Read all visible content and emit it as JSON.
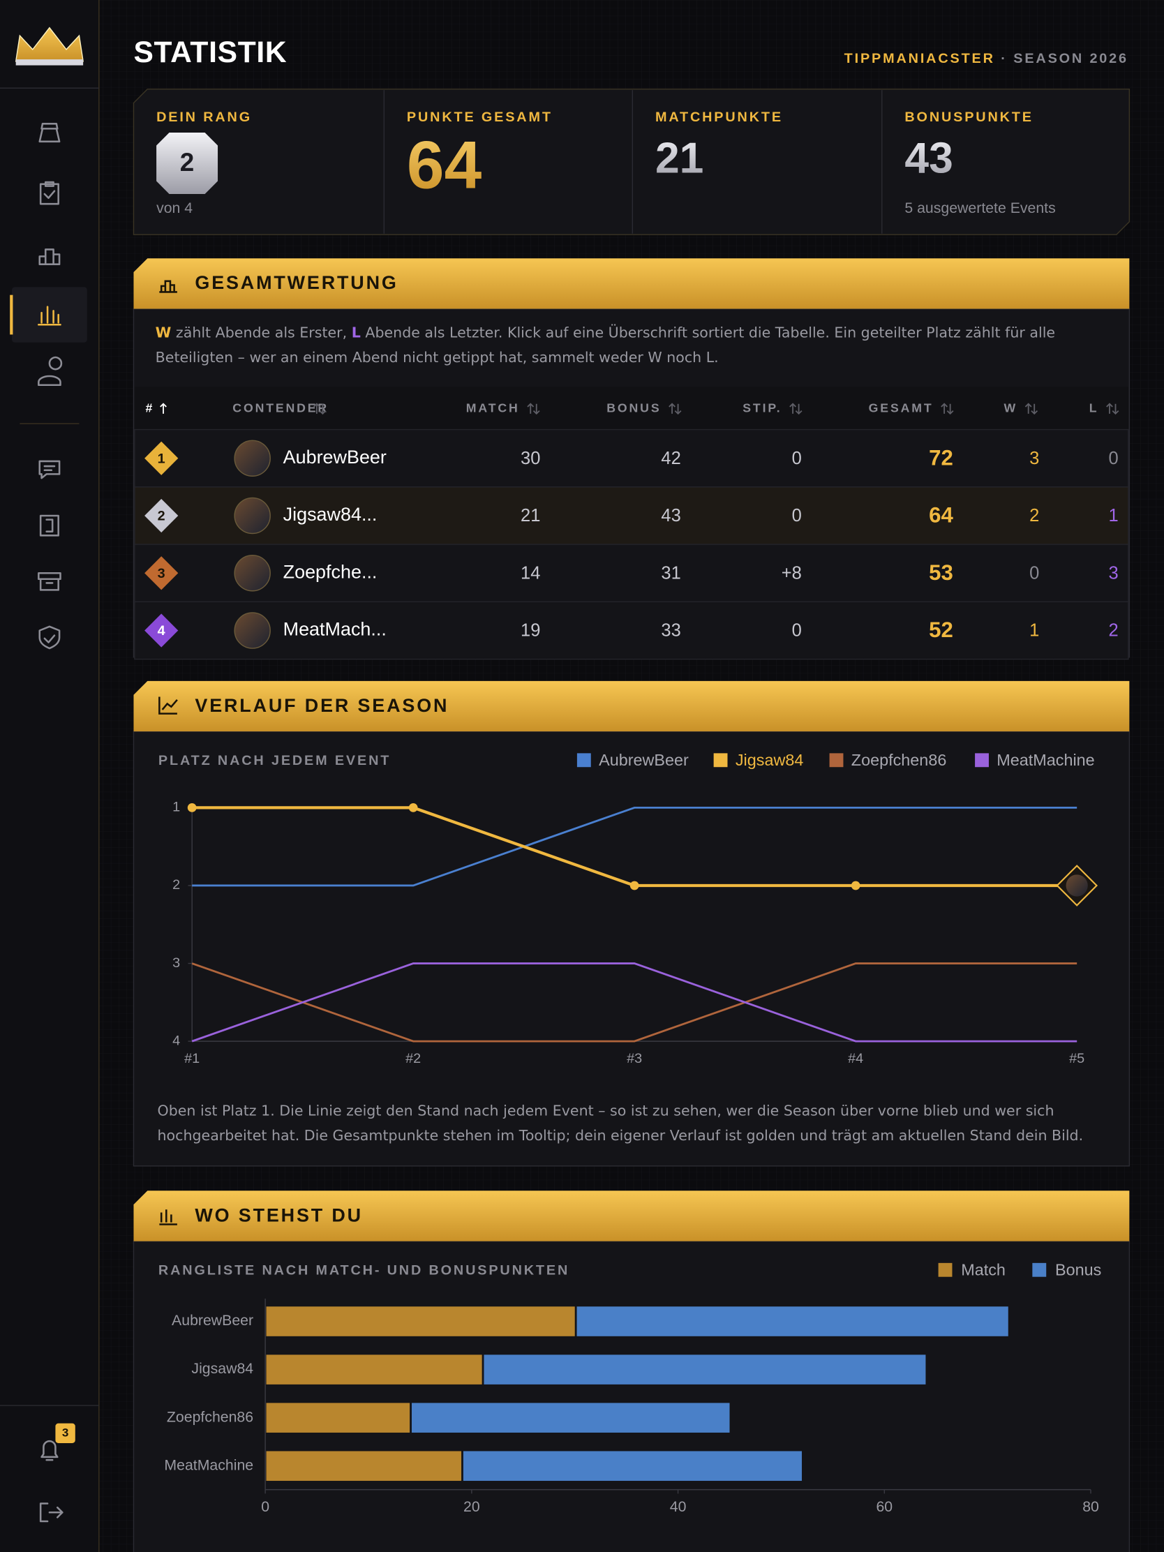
{
  "header": {
    "title": "STATISTIK",
    "user": "TIPPMANIACSTER",
    "separator": "·",
    "season": "SEASON 2026"
  },
  "sidebar": {
    "notifications": 3
  },
  "stats": [
    {
      "label": "DEIN RANG",
      "value": 2,
      "sub": "von 4"
    },
    {
      "label": "PUNKTE GESAMT",
      "value": 64
    },
    {
      "label": "MATCHPUNKTE",
      "value": 21
    },
    {
      "label": "BONUSPUNKTE",
      "value": 43,
      "sub": "5 ausgewertete Events"
    }
  ],
  "standings": {
    "title": "GESAMTWERTUNG",
    "intro": [
      "W",
      " zählt Abende als Erster, ",
      "L",
      " Abende als Letzter. Klick auf eine Überschrift sortiert die Tabelle. Ein geteilter Platz zählt für alle Beteiligten – wer an einem Abend nicht getippt hat, sammelt weder W noch L."
    ],
    "columns": [
      "#",
      "CONTENDER",
      "MATCH",
      "BONUS",
      "STIP.",
      "GESAMT",
      "W",
      "L"
    ],
    "rows": [
      [
        1,
        "AubrewBeer",
        30,
        42,
        0,
        72,
        3,
        0
      ],
      [
        2,
        "Jigsaw84...",
        21,
        43,
        0,
        64,
        2,
        1
      ],
      [
        3,
        "Zoepfche...",
        14,
        31,
        "+8",
        53,
        0,
        3
      ],
      [
        4,
        "MeatMach...",
        19,
        33,
        0,
        52,
        1,
        2
      ]
    ]
  },
  "progress_chart": {
    "type": "line",
    "title": "VERLAUF DER SEASON",
    "subtitle": "PLATZ NACH JEDEM EVENT",
    "categories": [
      "#1",
      "#2",
      "#3",
      "#4",
      "#5"
    ],
    "ylim": [
      4,
      1
    ],
    "yticks": [
      1,
      2,
      3,
      4
    ],
    "series": [
      {
        "name": "AubrewBeer",
        "color": "#4a80d0",
        "values": [
          2,
          2,
          1,
          1,
          1
        ]
      },
      {
        "name": "Jigsaw84",
        "color": "#f0b840",
        "values": [
          1,
          1,
          2,
          2,
          2
        ],
        "highlight": true
      },
      {
        "name": "Zoepfchen86",
        "color": "#b0653c",
        "values": [
          3,
          4,
          4,
          3,
          3
        ]
      },
      {
        "name": "MeatMachine",
        "color": "#9a62dc",
        "values": [
          4,
          3,
          3,
          4,
          4
        ]
      }
    ],
    "note": "Oben ist Platz 1. Die Linie zeigt den Stand nach jedem Event – so ist zu sehen, wer die Season über vorne blieb und wer sich hochgearbeitet hat. Die Gesamtpunkte stehen im Tooltip; dein eigener Verlauf ist golden und trägt am aktuellen Stand dein Bild."
  },
  "rank_chart": {
    "type": "bar",
    "orientation": "horizontal",
    "stacked": true,
    "title": "WO STEHST DU",
    "subtitle": "RANGLISTE NACH MATCH- UND BONUSPUNKTEN",
    "categories": [
      "AubrewBeer",
      "Jigsaw84",
      "Zoepfchen86",
      "MeatMachine"
    ],
    "series": [
      {
        "name": "Match",
        "color": "#b9862e",
        "values": [
          30,
          21,
          14,
          19
        ]
      },
      {
        "name": "Bonus",
        "color": "#4a80c8",
        "values": [
          42,
          43,
          31,
          33
        ]
      }
    ],
    "xlim": [
      0,
      80
    ],
    "xticks": [
      0,
      20,
      40,
      60,
      80
    ]
  }
}
